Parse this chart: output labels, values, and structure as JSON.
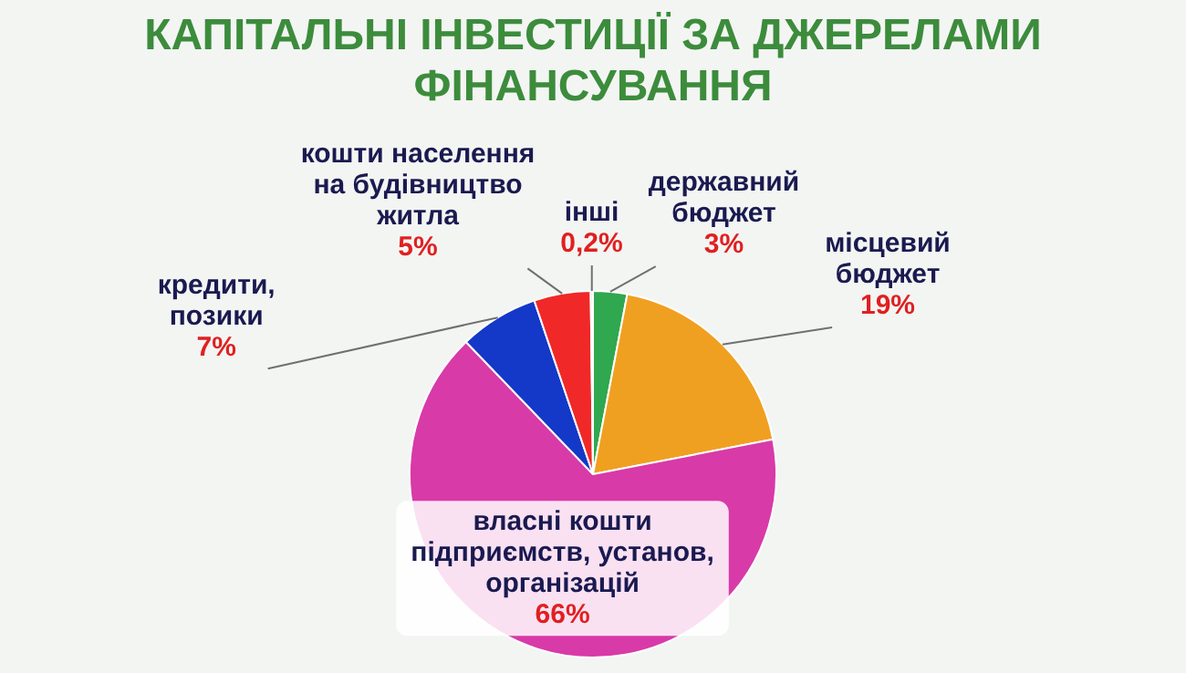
{
  "chart_data": {
    "type": "pie",
    "title": "КАПІТАЛЬНІ ІНВЕСТИЦІЇ ЗА ДЖЕРЕЛАМИ ФІНАНСУВАННЯ",
    "categories": [
      "державний бюджет",
      "місцевий бюджет",
      "власні кошти підприємств, установ, організацій",
      "кредити, позики",
      "кошти населення на будівництво житла",
      "інші"
    ],
    "values": [
      3,
      19,
      66,
      7,
      5,
      0.2
    ],
    "colors": [
      "#2fa84f",
      "#f0a020",
      "#d83aa8",
      "#1438c8",
      "#f02828",
      "#e0e0e0"
    ],
    "value_labels": [
      "3%",
      "19%",
      "66%",
      "7%",
      "5%",
      "0,2%"
    ],
    "legend": false
  }
}
